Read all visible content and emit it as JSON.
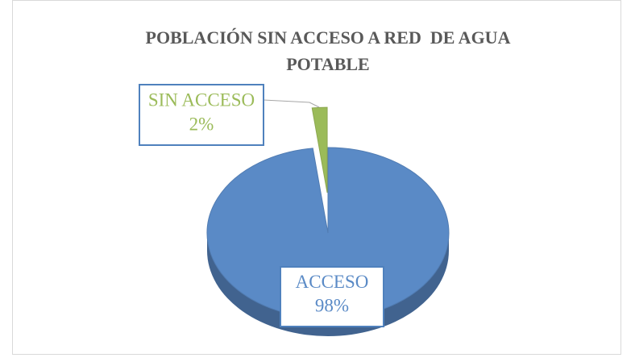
{
  "chart_data": {
    "type": "pie",
    "title": "POBLACIÓN SIN ACCESO A RED  DE AGUA POTABLE",
    "categories": [
      "ACCESO",
      "SIN ACCESO"
    ],
    "values": [
      98,
      2
    ],
    "value_labels": [
      "98%",
      "2%"
    ],
    "colors": [
      "#5a8ac6",
      "#9bbb59"
    ]
  }
}
